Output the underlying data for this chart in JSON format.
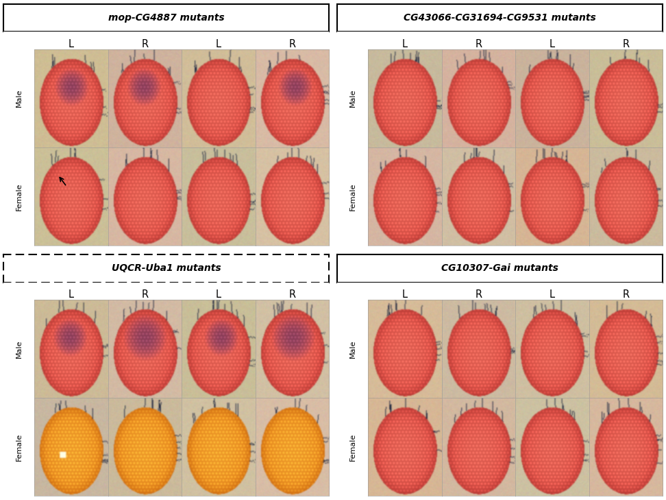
{
  "panels": [
    {
      "id": 0,
      "title_italic": "mop-CG4887",
      "title_normal": " mutants",
      "border": "solid",
      "grid_col": 0,
      "grid_row": 0,
      "male_eyes": [
        {
          "dark_upper": true,
          "purple_tint": true,
          "orange": false,
          "seed": 1
        },
        {
          "dark_upper": true,
          "purple_tint": true,
          "orange": false,
          "seed": 2
        },
        {
          "dark_upper": false,
          "purple_tint": false,
          "orange": false,
          "seed": 3
        },
        {
          "dark_upper": true,
          "purple_tint": false,
          "orange": false,
          "seed": 4
        }
      ],
      "female_eyes": [
        {
          "dark_upper": false,
          "purple_tint": false,
          "orange": false,
          "seed": 5,
          "arrow": true
        },
        {
          "dark_upper": false,
          "purple_tint": false,
          "orange": false,
          "seed": 6
        },
        {
          "dark_upper": false,
          "purple_tint": false,
          "orange": false,
          "seed": 7
        },
        {
          "dark_upper": false,
          "purple_tint": false,
          "orange": false,
          "seed": 8
        }
      ]
    },
    {
      "id": 1,
      "title_italic": "CG43066-CG31694-CG9531",
      "title_normal": " mutants",
      "border": "solid",
      "grid_col": 1,
      "grid_row": 0,
      "male_eyes": [
        {
          "dark_upper": false,
          "purple_tint": false,
          "orange": false,
          "seed": 9
        },
        {
          "dark_upper": false,
          "purple_tint": false,
          "orange": false,
          "seed": 10
        },
        {
          "dark_upper": false,
          "purple_tint": false,
          "orange": false,
          "seed": 11
        },
        {
          "dark_upper": false,
          "purple_tint": false,
          "orange": false,
          "seed": 12
        }
      ],
      "female_eyes": [
        {
          "dark_upper": false,
          "purple_tint": false,
          "orange": false,
          "seed": 13
        },
        {
          "dark_upper": false,
          "purple_tint": false,
          "orange": false,
          "seed": 14
        },
        {
          "dark_upper": false,
          "purple_tint": false,
          "orange": false,
          "seed": 15
        },
        {
          "dark_upper": false,
          "purple_tint": false,
          "orange": false,
          "seed": 16
        }
      ]
    },
    {
      "id": 2,
      "title_italic": "UQCR-Uba1",
      "title_normal": " mutants",
      "border": "dashed",
      "grid_col": 0,
      "grid_row": 1,
      "male_eyes": [
        {
          "dark_upper": true,
          "purple_tint": true,
          "orange": false,
          "seed": 17
        },
        {
          "dark_upper": false,
          "purple_tint": true,
          "orange": false,
          "seed": 18
        },
        {
          "dark_upper": true,
          "purple_tint": true,
          "orange": false,
          "seed": 19
        },
        {
          "dark_upper": false,
          "purple_tint": true,
          "orange": false,
          "seed": 20
        }
      ],
      "female_eyes": [
        {
          "dark_upper": false,
          "purple_tint": false,
          "orange": true,
          "seed": 21,
          "glint": true
        },
        {
          "dark_upper": false,
          "purple_tint": false,
          "orange": true,
          "seed": 22
        },
        {
          "dark_upper": false,
          "purple_tint": false,
          "orange": true,
          "seed": 23
        },
        {
          "dark_upper": false,
          "purple_tint": false,
          "orange": true,
          "seed": 24
        }
      ]
    },
    {
      "id": 3,
      "title_italic": "CG10307-Gai",
      "title_normal": " mutants",
      "border": "solid",
      "grid_col": 1,
      "grid_row": 1,
      "male_eyes": [
        {
          "dark_upper": false,
          "purple_tint": false,
          "orange": false,
          "seed": 25
        },
        {
          "dark_upper": false,
          "purple_tint": false,
          "orange": false,
          "seed": 26
        },
        {
          "dark_upper": false,
          "purple_tint": false,
          "orange": false,
          "seed": 27
        },
        {
          "dark_upper": false,
          "purple_tint": false,
          "orange": false,
          "seed": 28
        }
      ],
      "female_eyes": [
        {
          "dark_upper": false,
          "purple_tint": false,
          "orange": false,
          "seed": 29
        },
        {
          "dark_upper": false,
          "purple_tint": false,
          "orange": false,
          "seed": 30
        },
        {
          "dark_upper": false,
          "purple_tint": false,
          "orange": false,
          "seed": 31
        },
        {
          "dark_upper": false,
          "purple_tint": false,
          "orange": false,
          "seed": 32
        }
      ]
    }
  ],
  "col_labels": [
    "L",
    "R",
    "L",
    "R"
  ],
  "row_labels": [
    "Male",
    "Female"
  ],
  "figure_width": 9.72,
  "figure_height": 7.29,
  "dpi": 100
}
